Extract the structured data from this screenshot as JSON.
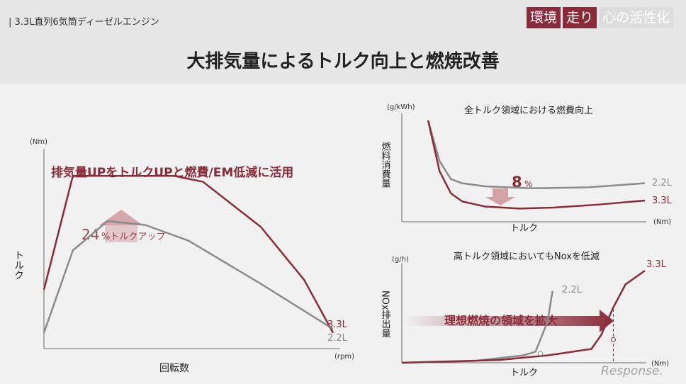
{
  "header": {
    "subtitle": "| 3.3L直列6気筒ディーゼルエンジン",
    "tags": [
      "環境",
      "走り",
      "心の活性化"
    ],
    "title": "大排気量によるトルク向上と燃焼改善"
  },
  "colors": {
    "accent": "#8a2b3a",
    "gray": "#8a8a8a",
    "arrow": "#c9868e"
  },
  "watermark": "Response.",
  "chart_data": [
    {
      "type": "line",
      "title": "排気量UPをトルクUPと燃費/EM低減に活用",
      "xlabel": "回転数",
      "ylabel": "トルク",
      "xunit": "(rpm)",
      "yunit": "(Nm)",
      "annotation": {
        "pct": "24",
        "text": "%トルクアップ"
      },
      "series": [
        {
          "name": "3.3L",
          "x": [
            0,
            0.1,
            0.45,
            0.55,
            0.75,
            0.9,
            1.0
          ],
          "y": [
            0.3,
            0.88,
            0.88,
            0.85,
            0.62,
            0.35,
            0.08
          ]
        },
        {
          "name": "2.2L",
          "x": [
            0,
            0.1,
            0.22,
            0.35,
            0.5,
            0.75,
            1.0
          ],
          "y": [
            0.08,
            0.5,
            0.65,
            0.63,
            0.55,
            0.33,
            0.1
          ]
        }
      ]
    },
    {
      "type": "line",
      "title": "全トルク領域における燃費向上",
      "xlabel": "トルク",
      "ylabel": "燃料消費量",
      "xunit": "(Nm)",
      "yunit": "(g/kWh)",
      "annotation": {
        "pct": "8",
        "text": "%"
      },
      "series": [
        {
          "name": "2.2L",
          "x": [
            0.05,
            0.1,
            0.15,
            0.2,
            0.3,
            0.5,
            0.75,
            1.0
          ],
          "y": [
            1.0,
            0.6,
            0.42,
            0.38,
            0.35,
            0.33,
            0.34,
            0.38
          ]
        },
        {
          "name": "3.3L",
          "x": [
            0.05,
            0.1,
            0.15,
            0.2,
            0.3,
            0.45,
            0.6,
            0.8,
            1.0
          ],
          "y": [
            1.0,
            0.5,
            0.28,
            0.2,
            0.15,
            0.13,
            0.14,
            0.17,
            0.21
          ]
        }
      ]
    },
    {
      "type": "line",
      "title": "高トルク領域においてもNoxを低減",
      "xlabel": "トルク",
      "ylabel": "NOx排出量",
      "xunit": "(Nm)",
      "yunit": "(g/h)",
      "annotation": {
        "text": "理想燃焼の領域を拡大"
      },
      "series": [
        {
          "name": "2.2L",
          "x": [
            0,
            0.3,
            0.5,
            0.55,
            0.6,
            0.62
          ],
          "y": [
            0,
            0.02,
            0.08,
            0.12,
            0.45,
            0.78
          ]
        },
        {
          "name": "3.3L",
          "x": [
            0,
            0.4,
            0.6,
            0.78,
            0.82,
            0.87,
            0.92,
            1.0
          ],
          "y": [
            0,
            0.03,
            0.08,
            0.15,
            0.3,
            0.6,
            0.85,
            1.0
          ]
        }
      ]
    }
  ]
}
